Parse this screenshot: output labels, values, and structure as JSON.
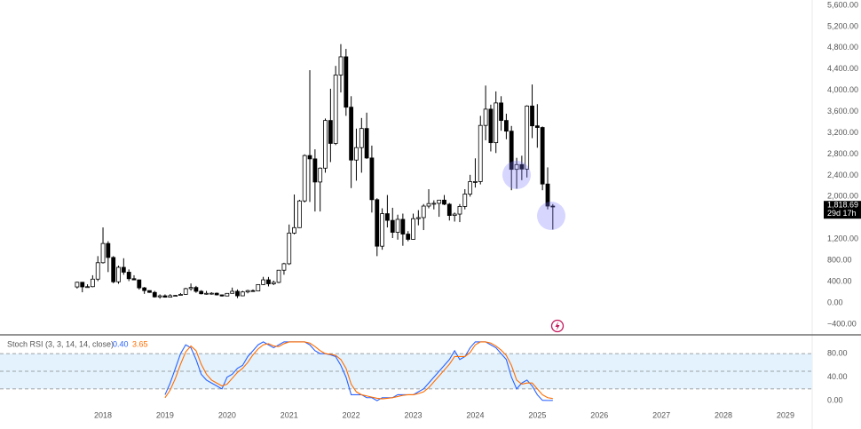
{
  "chart_data": [
    {
      "type": "candlestick",
      "x": [
        2017.583,
        2017.667,
        2017.75,
        2017.833,
        2017.917,
        2018.0,
        2018.083,
        2018.167,
        2018.25,
        2018.333,
        2018.417,
        2018.5,
        2018.583,
        2018.667,
        2018.75,
        2018.833,
        2018.917,
        2019.0,
        2019.083,
        2019.167,
        2019.25,
        2019.333,
        2019.417,
        2019.5,
        2019.583,
        2019.667,
        2019.75,
        2019.833,
        2019.917,
        2020.0,
        2020.083,
        2020.167,
        2020.25,
        2020.333,
        2020.417,
        2020.5,
        2020.583,
        2020.667,
        2020.75,
        2020.833,
        2020.917,
        2021.0,
        2021.083,
        2021.167,
        2021.25,
        2021.333,
        2021.417,
        2021.5,
        2021.583,
        2021.667,
        2021.75,
        2021.833,
        2021.917,
        2022.0,
        2022.083,
        2022.167,
        2022.25,
        2022.333,
        2022.417,
        2022.5,
        2022.583,
        2022.667,
        2022.75,
        2022.833,
        2022.917,
        2023.0,
        2023.083,
        2023.167,
        2023.25,
        2023.333,
        2023.417,
        2023.5,
        2023.583,
        2023.667,
        2023.75,
        2023.833,
        2023.917,
        2024.0,
        2024.083,
        2024.167,
        2024.25,
        2024.333,
        2024.417,
        2024.5,
        2024.583,
        2024.667,
        2024.75,
        2024.833,
        2024.917,
        2025.0,
        2025.083,
        2025.167,
        2025.25
      ],
      "open": [
        300,
        388,
        301,
        305,
        447,
        756,
        1118,
        855,
        397,
        669,
        578,
        455,
        433,
        283,
        232,
        197,
        113,
        133,
        107,
        136,
        141,
        160,
        268,
        290,
        218,
        172,
        180,
        182,
        151,
        130,
        179,
        218,
        133,
        206,
        231,
        225,
        345,
        434,
        359,
        386,
        615,
        737,
        1314,
        1416,
        1919,
        2773,
        2710,
        2275,
        2536,
        3433,
        3001,
        4288,
        4631,
        3683,
        2688,
        2922,
        3282,
        2727,
        1942,
        1067,
        1679,
        1553,
        1328,
        1572,
        1295,
        1196,
        1585,
        1605,
        1822,
        1869,
        1874,
        1934,
        1857,
        1645,
        1671,
        1815,
        2048,
        2282,
        2283,
        3340,
        3646,
        3015,
        3763,
        3433,
        3232,
        2513,
        2603,
        2518,
        3705,
        3332,
        3301,
        2237,
        1822
      ],
      "high": [
        400,
        395,
        350,
        520,
        880,
        1420,
        1160,
        880,
        700,
        840,
        630,
        520,
        440,
        300,
        235,
        225,
        160,
        160,
        165,
        147,
        185,
        285,
        365,
        320,
        240,
        225,
        200,
        195,
        155,
        185,
        288,
        253,
        227,
        247,
        253,
        350,
        490,
        488,
        420,
        620,
        755,
        1475,
        2040,
        1940,
        2795,
        4380,
        2890,
        2550,
        3470,
        4030,
        4460,
        4870,
        4780,
        3890,
        3280,
        3480,
        3580,
        2960,
        1970,
        1780,
        2030,
        1790,
        1660,
        1680,
        1350,
        1680,
        1745,
        1860,
        2140,
        1930,
        1930,
        2030,
        1880,
        1700,
        1860,
        2140,
        2410,
        2720,
        3520,
        4090,
        3730,
        3980,
        3890,
        3560,
        3330,
        2730,
        2770,
        3720,
        4110,
        3740,
        3320,
        2550,
        1860
      ],
      "low": [
        270,
        200,
        285,
        295,
        410,
        740,
        580,
        370,
        360,
        530,
        410,
        430,
        250,
        170,
        190,
        100,
        80,
        100,
        100,
        125,
        140,
        150,
        230,
        190,
        160,
        155,
        155,
        140,
        120,
        125,
        175,
        90,
        125,
        180,
        215,
        220,
        335,
        310,
        335,
        370,
        530,
        715,
        1290,
        1410,
        1890,
        1900,
        1720,
        1720,
        2450,
        2650,
        2970,
        3960,
        3520,
        2160,
        2300,
        2450,
        2710,
        1700,
        880,
        1000,
        1420,
        1220,
        1190,
        1075,
        1160,
        1190,
        1460,
        1370,
        1780,
        1760,
        1620,
        1840,
        1550,
        1530,
        1520,
        1760,
        2000,
        2170,
        2230,
        3060,
        2850,
        2820,
        3240,
        3080,
        2120,
        2150,
        2310,
        2360,
        3100,
        2920,
        2120,
        1760,
        1380
      ],
      "close": [
        388,
        301,
        305,
        447,
        756,
        1118,
        855,
        397,
        669,
        578,
        455,
        433,
        283,
        232,
        197,
        113,
        133,
        107,
        136,
        141,
        160,
        268,
        290,
        218,
        172,
        180,
        182,
        151,
        130,
        179,
        218,
        133,
        206,
        231,
        225,
        345,
        434,
        359,
        386,
        615,
        737,
        1314,
        1416,
        1919,
        2773,
        2710,
        2275,
        2536,
        3433,
        3001,
        4288,
        4631,
        3683,
        2688,
        2922,
        3282,
        2727,
        1942,
        1067,
        1679,
        1553,
        1328,
        1572,
        1295,
        1196,
        1585,
        1605,
        1822,
        1869,
        1874,
        1934,
        1857,
        1645,
        1671,
        1815,
        2048,
        2282,
        2283,
        3340,
        3646,
        3015,
        3763,
        3433,
        3232,
        2513,
        2603,
        2518,
        3705,
        3332,
        3301,
        2237,
        1822,
        1818.69
      ],
      "up_color": "#ffffff",
      "down_color": "#000000",
      "border_color": "#000000",
      "xlim": [
        2016.34,
        2029.43
      ],
      "xticks": [
        2018,
        2019,
        2020,
        2021,
        2022,
        2023,
        2024,
        2025,
        2026,
        2027,
        2028,
        2029
      ],
      "ylim": [
        -568,
        5700
      ],
      "yticks": [
        {
          "value": -400,
          "label": "−400.00"
        },
        {
          "value": 0,
          "label": "0.00"
        },
        {
          "value": 400,
          "label": "400.00"
        },
        {
          "value": 800,
          "label": "800.00"
        },
        {
          "value": 1200,
          "label": "1,200.00"
        },
        {
          "value": 2000,
          "label": "2,000.00"
        },
        {
          "value": 2400,
          "label": "2,400.00"
        },
        {
          "value": 2800,
          "label": "2,800.00"
        },
        {
          "value": 3200,
          "label": "3,200.00"
        },
        {
          "value": 3600,
          "label": "3,600.00"
        },
        {
          "value": 4000,
          "label": "4,000.00"
        },
        {
          "value": 4400,
          "label": "4,400.00"
        },
        {
          "value": 4800,
          "label": "4,800.00"
        },
        {
          "value": 5200,
          "label": "5,200.00"
        },
        {
          "value": 5600,
          "label": "5,600.00"
        }
      ],
      "last_price": {
        "value": 1818.69,
        "label": "1,818.69"
      },
      "countdown": "29d 17h"
    },
    {
      "type": "line",
      "title": "Stoch RSI (3, 3, 14, 14, close)",
      "x": [
        2019.0,
        2019.083,
        2019.167,
        2019.25,
        2019.333,
        2019.417,
        2019.5,
        2019.583,
        2019.667,
        2019.75,
        2019.833,
        2019.917,
        2020.0,
        2020.083,
        2020.167,
        2020.25,
        2020.333,
        2020.417,
        2020.5,
        2020.583,
        2020.667,
        2020.75,
        2020.833,
        2020.917,
        2021.0,
        2021.083,
        2021.167,
        2021.25,
        2021.333,
        2021.417,
        2021.5,
        2021.583,
        2021.667,
        2021.75,
        2021.833,
        2021.917,
        2022.0,
        2022.083,
        2022.167,
        2022.25,
        2022.333,
        2022.417,
        2022.5,
        2022.583,
        2022.667,
        2022.75,
        2022.833,
        2022.917,
        2023.0,
        2023.083,
        2023.167,
        2023.25,
        2023.333,
        2023.417,
        2023.5,
        2023.583,
        2023.667,
        2023.75,
        2023.833,
        2023.917,
        2024.0,
        2024.083,
        2024.167,
        2024.25,
        2024.333,
        2024.417,
        2024.5,
        2024.583,
        2024.667,
        2024.75,
        2024.833,
        2024.917,
        2025.0,
        2025.083,
        2025.167,
        2025.25
      ],
      "series": [
        {
          "color": "#2962ff",
          "legend_value": "0.40",
          "values": [
            10,
            30,
            55,
            80,
            95,
            90,
            70,
            45,
            35,
            30,
            25,
            20,
            40,
            45,
            55,
            60,
            75,
            85,
            95,
            100,
            95,
            90,
            95,
            100,
            100,
            100,
            100,
            100,
            95,
            85,
            80,
            80,
            78,
            75,
            60,
            40,
            10,
            10,
            10,
            5,
            5,
            0,
            5,
            5,
            5,
            10,
            10,
            10,
            10,
            15,
            20,
            30,
            40,
            50,
            60,
            70,
            85,
            70,
            75,
            90,
            100,
            100,
            100,
            95,
            90,
            80,
            70,
            40,
            20,
            30,
            35,
            25,
            10,
            0.5,
            0.3,
            0.4
          ]
        },
        {
          "color": "#ff6d00",
          "legend_value": "3.65",
          "values": [
            5,
            18,
            38,
            62,
            83,
            93,
            85,
            62,
            45,
            35,
            30,
            25,
            28,
            38,
            48,
            55,
            65,
            78,
            88,
            95,
            97,
            93,
            92,
            97,
            100,
            100,
            100,
            100,
            98,
            92,
            85,
            80,
            79,
            77,
            70,
            55,
            28,
            15,
            10,
            8,
            6,
            4,
            3,
            4,
            5,
            7,
            9,
            10,
            10,
            12,
            15,
            22,
            32,
            42,
            52,
            62,
            75,
            75,
            75,
            82,
            95,
            100,
            100,
            98,
            93,
            86,
            77,
            60,
            35,
            28,
            30,
            30,
            20,
            10,
            5,
            3.65
          ]
        }
      ],
      "xlim": [
        2016.34,
        2029.43
      ],
      "ylim": [
        -12,
        112
      ],
      "yticks": [
        {
          "value": 80,
          "label": "80.00"
        },
        {
          "value": 40,
          "label": "40.00"
        },
        {
          "value": 0,
          "label": "0.00"
        }
      ],
      "levels": [
        20,
        50,
        80
      ],
      "band_color": "#e3f2fd"
    }
  ]
}
